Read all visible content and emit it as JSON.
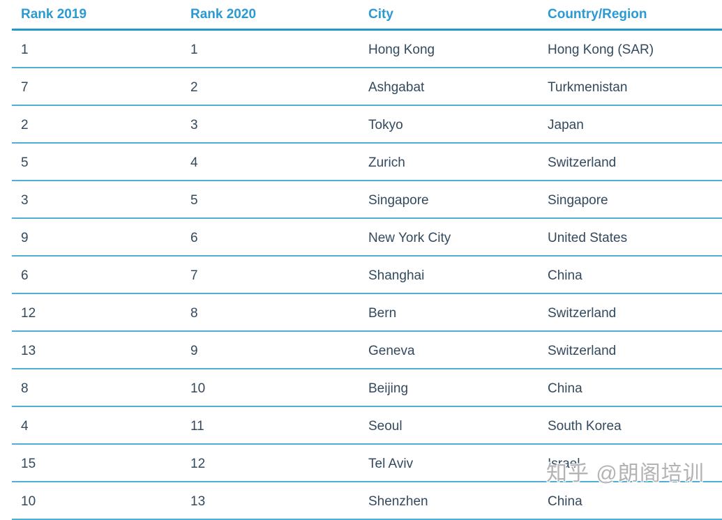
{
  "colors": {
    "header_text": "#2b9ad2",
    "header_rule": "#2299cb",
    "row_rule": "#4fafd0",
    "body_text": "#33495d",
    "watermark_text": "#b3b3b5",
    "background": "#ffffff"
  },
  "watermark": {
    "text": "知乎 @朗阁培训"
  },
  "chart_data": {
    "type": "table",
    "columns": [
      "Rank 2019",
      "Rank 2020",
      "City",
      "Country/Region"
    ],
    "rows": [
      [
        "1",
        "1",
        "Hong Kong",
        "Hong Kong (SAR)"
      ],
      [
        "7",
        "2",
        "Ashgabat",
        "Turkmenistan"
      ],
      [
        "2",
        "3",
        "Tokyo",
        "Japan"
      ],
      [
        "5",
        "4",
        "Zurich",
        "Switzerland"
      ],
      [
        "3",
        "5",
        "Singapore",
        "Singapore"
      ],
      [
        "9",
        "6",
        "New York City",
        "United States"
      ],
      [
        "6",
        "7",
        "Shanghai",
        "China"
      ],
      [
        "12",
        "8",
        "Bern",
        "Switzerland"
      ],
      [
        "13",
        "9",
        "Geneva",
        "Switzerland"
      ],
      [
        "8",
        "10",
        "Beijing",
        "China"
      ],
      [
        "4",
        "11",
        "Seoul",
        "South Korea"
      ],
      [
        "15",
        "12",
        "Tel Aviv",
        "Israel"
      ],
      [
        "10",
        "13",
        "Shenzhen",
        "China"
      ]
    ]
  }
}
